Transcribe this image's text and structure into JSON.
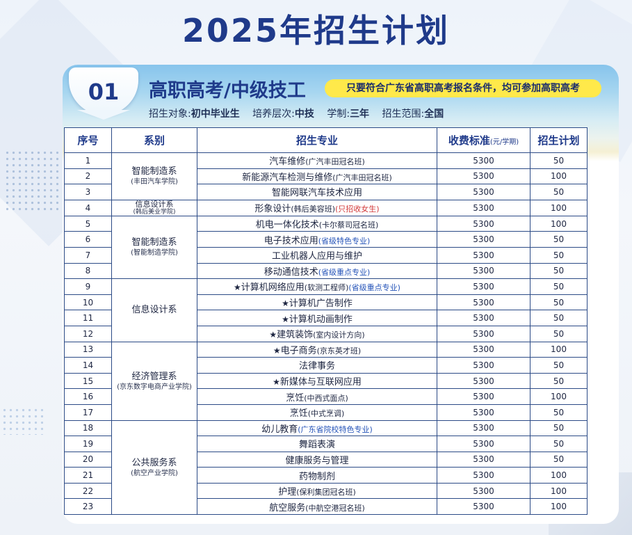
{
  "title": "2025年招生计划",
  "section": {
    "number": "01",
    "title": "高职高考/中级技工",
    "condition": "只要符合广东省高职高考报名条件，均可参加高职高考",
    "info": [
      {
        "label": "招生对象:",
        "value": "初中毕业生"
      },
      {
        "label": "培养层次:",
        "value": "中技"
      },
      {
        "label": "学制:",
        "value": "三年"
      },
      {
        "label": "招生范围:",
        "value": "全国"
      }
    ]
  },
  "table": {
    "headers": {
      "no": "序号",
      "dept": "系别",
      "major": "招生专业",
      "fee": "收费标准",
      "fee_unit": "(元/学期)",
      "plan": "招生计划"
    },
    "departments": [
      {
        "name": "智能制造系",
        "sub": "(丰田汽车学院)"
      },
      {
        "name": "信息设计系",
        "sub": "(韩后美业学院)"
      },
      {
        "name": "智能制造系",
        "sub": "(智能制造学院)"
      },
      {
        "name": "信息设计系",
        "sub": ""
      },
      {
        "name": "经济管理系",
        "sub": "(京东数字电商产业学院)"
      },
      {
        "name": "公共服务系",
        "sub": "(航空产业学院)"
      }
    ],
    "rows": [
      {
        "no": "1",
        "star": "",
        "major": "汽车维修",
        "note": "(广汽丰田冠名班)",
        "note_style": "plain",
        "fee": "5300",
        "plan": "50"
      },
      {
        "no": "2",
        "star": "",
        "major": "新能源汽车检测与维修",
        "note": "(广汽丰田冠名班)",
        "note_style": "plain",
        "fee": "5300",
        "plan": "100"
      },
      {
        "no": "3",
        "star": "",
        "major": "智能网联汽车技术应用",
        "note": "",
        "note_style": "plain",
        "fee": "5300",
        "plan": "50"
      },
      {
        "no": "4",
        "star": "",
        "major": "形象设计",
        "note": "(韩后美容班)",
        "note_style": "plain",
        "note2": "(只招收女生)",
        "fee": "5300",
        "plan": "100"
      },
      {
        "no": "5",
        "star": "",
        "major": "机电一体化技术",
        "note": "(卡尔蔡司冠名班)",
        "note_style": "plain",
        "fee": "5300",
        "plan": "100"
      },
      {
        "no": "6",
        "star": "",
        "major": "电子技术应用",
        "note": "(省级特色专业)",
        "note_style": "blue",
        "fee": "5300",
        "plan": "50"
      },
      {
        "no": "7",
        "star": "",
        "major": "工业机器人应用与维护",
        "note": "",
        "note_style": "plain",
        "fee": "5300",
        "plan": "50"
      },
      {
        "no": "8",
        "star": "",
        "major": "移动通信技术",
        "note": "(省级重点专业)",
        "note_style": "blue",
        "fee": "5300",
        "plan": "50"
      },
      {
        "no": "9",
        "star": "★",
        "major": "计算机网络应用",
        "note": "(软测工程师)",
        "note_style": "plain",
        "note2b": "(省级重点专业)",
        "fee": "5300",
        "plan": "50"
      },
      {
        "no": "10",
        "star": "★",
        "major": "计算机广告制作",
        "note": "",
        "note_style": "plain",
        "fee": "5300",
        "plan": "50"
      },
      {
        "no": "11",
        "star": "★",
        "major": "计算机动画制作",
        "note": "",
        "note_style": "plain",
        "fee": "5300",
        "plan": "50"
      },
      {
        "no": "12",
        "star": "★",
        "major": "建筑装饰",
        "note": "(室内设计方向)",
        "note_style": "plain",
        "fee": "5300",
        "plan": "50"
      },
      {
        "no": "13",
        "star": "★",
        "major": "电子商务",
        "note": "(京东英才班)",
        "note_style": "plain",
        "fee": "5300",
        "plan": "100"
      },
      {
        "no": "14",
        "star": "",
        "major": "法律事务",
        "note": "",
        "note_style": "plain",
        "fee": "5300",
        "plan": "50"
      },
      {
        "no": "15",
        "star": "★",
        "major": "新媒体与互联网应用",
        "note": "",
        "note_style": "plain",
        "fee": "5300",
        "plan": "50"
      },
      {
        "no": "16",
        "star": "",
        "major": "烹饪",
        "note": "(中西式面点)",
        "note_style": "plain",
        "fee": "5300",
        "plan": "100"
      },
      {
        "no": "17",
        "star": "",
        "major": "烹饪",
        "note": "(中式烹调)",
        "note_style": "plain",
        "fee": "5300",
        "plan": "50"
      },
      {
        "no": "18",
        "star": "",
        "major": "幼儿教育",
        "note": "(广东省院校特色专业)",
        "note_style": "blue",
        "fee": "5300",
        "plan": "50"
      },
      {
        "no": "19",
        "star": "",
        "major": "舞蹈表演",
        "note": "",
        "note_style": "plain",
        "fee": "5300",
        "plan": "50"
      },
      {
        "no": "20",
        "star": "",
        "major": "健康服务与管理",
        "note": "",
        "note_style": "plain",
        "fee": "5300",
        "plan": "50"
      },
      {
        "no": "21",
        "star": "",
        "major": "药物制剂",
        "note": "",
        "note_style": "plain",
        "fee": "5300",
        "plan": "100"
      },
      {
        "no": "22",
        "star": "",
        "major": "护理",
        "note": "(保利集团冠名班)",
        "note_style": "plain",
        "fee": "5300",
        "plan": "100"
      },
      {
        "no": "23",
        "star": "",
        "major": "航空服务",
        "note": "(中航空港冠名班)",
        "note_style": "plain",
        "fee": "5300",
        "plan": "100"
      }
    ],
    "dept_spans": [
      {
        "dept": 0,
        "start": 0,
        "span": 3,
        "small": false
      },
      {
        "dept": 1,
        "start": 3,
        "span": 1,
        "small": true
      },
      {
        "dept": 2,
        "start": 4,
        "span": 4,
        "small": false
      },
      {
        "dept": 3,
        "start": 8,
        "span": 4,
        "small": false
      },
      {
        "dept": 4,
        "start": 12,
        "span": 5,
        "small": false
      },
      {
        "dept": 5,
        "start": 17,
        "span": 6,
        "small": false
      }
    ]
  }
}
